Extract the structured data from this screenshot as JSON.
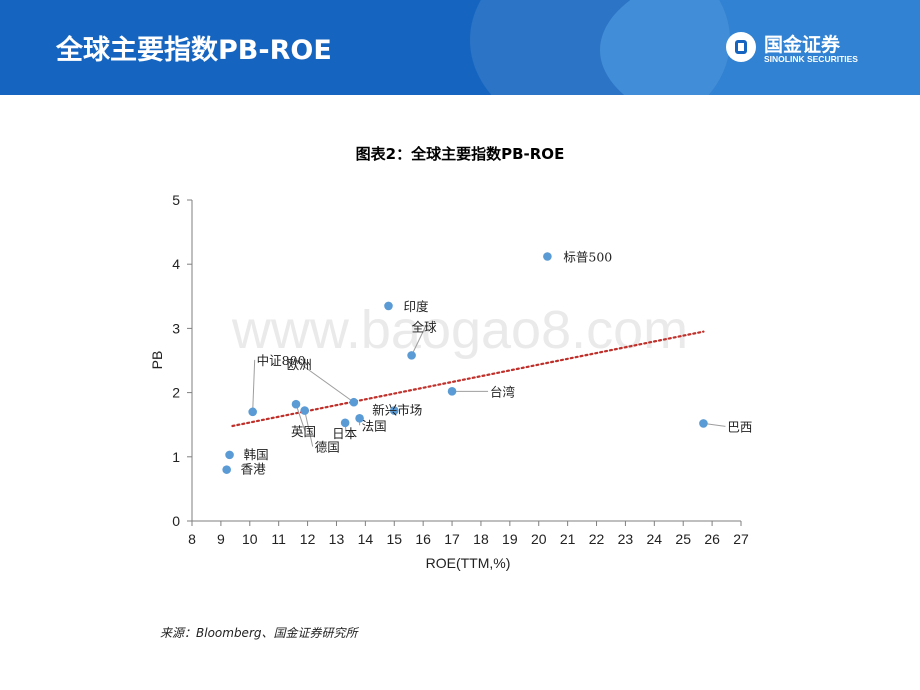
{
  "header": {
    "title": "全球主要指数PB-ROE",
    "logo_cn": "国金证券",
    "logo_en": "SINOLINK SECURITIES"
  },
  "watermark": "www.baogao8.com",
  "source": "来源：Bloomberg、国金证券研究所",
  "chart_data": {
    "type": "scatter",
    "title": "图表2：全球主要指数PB-ROE",
    "xlabel": "ROE(TTM,%)",
    "ylabel": "PB",
    "xlim": [
      8,
      27
    ],
    "ylim": [
      0,
      5
    ],
    "xticks": [
      "8",
      "9",
      "10",
      "11",
      "12",
      "13",
      "14",
      "15",
      "16",
      "17",
      "18",
      "19",
      "20",
      "21",
      "22",
      "23",
      "24",
      "25",
      "26",
      "27"
    ],
    "yticks": [
      "0",
      "1",
      "2",
      "3",
      "4",
      "5"
    ],
    "grid": false,
    "point_color": "#5b9bd5",
    "trendline": {
      "style": "dotted",
      "color": "#c0302b",
      "x": [
        9.4,
        25.7
      ],
      "y": [
        1.48,
        2.95
      ]
    },
    "points": [
      {
        "label": "标普500",
        "x": 20.3,
        "y": 4.12
      },
      {
        "label": "印度",
        "x": 14.8,
        "y": 3.35
      },
      {
        "label": "全球",
        "x": 15.6,
        "y": 2.58
      },
      {
        "label": "台湾",
        "x": 17.0,
        "y": 2.02
      },
      {
        "label": "巴西",
        "x": 25.7,
        "y": 1.52
      },
      {
        "label": "中证800",
        "x": 10.1,
        "y": 1.7
      },
      {
        "label": "欧洲",
        "x": 13.6,
        "y": 1.85
      },
      {
        "label": "英国",
        "x": 11.6,
        "y": 1.82
      },
      {
        "label": "德国",
        "x": 11.9,
        "y": 1.72
      },
      {
        "label": "日本",
        "x": 13.3,
        "y": 1.53
      },
      {
        "label": "法国",
        "x": 13.8,
        "y": 1.6
      },
      {
        "label": "新兴市场",
        "x": 15.0,
        "y": 1.72
      },
      {
        "label": "韩国",
        "x": 9.3,
        "y": 1.03
      },
      {
        "label": "香港",
        "x": 9.2,
        "y": 0.8
      }
    ]
  }
}
